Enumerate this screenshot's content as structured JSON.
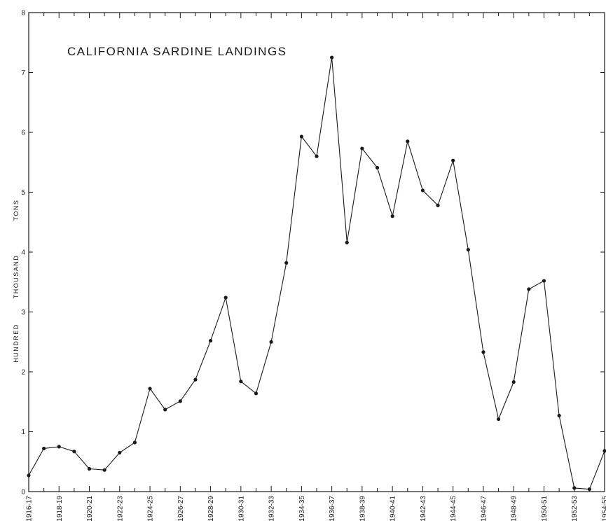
{
  "chart_data": {
    "type": "line",
    "title": "CALIFORNIA SARDINE LANDINGS",
    "ylabel_words": [
      "HUNDRED",
      "THOUSAND",
      "TONS"
    ],
    "ylim": [
      0,
      8
    ],
    "yticks": [
      "0",
      "1",
      "2",
      "3",
      "4",
      "5",
      "6",
      "7",
      "8"
    ],
    "x_tick_labels": [
      "1916-17",
      "1918-19",
      "1920-21",
      "1922-23",
      "1924-25",
      "1926-27",
      "1928-29",
      "1930-31",
      "1932-33",
      "1934-35",
      "1936-37",
      "1938-39",
      "1940-41",
      "1942-43",
      "1944-45",
      "1946-47",
      "1948-49",
      "1950-51",
      "1952-53",
      "1954-55"
    ],
    "series": [
      {
        "x": [
          "1916-17",
          "1917-18",
          "1918-19",
          "1919-20",
          "1920-21",
          "1921-22",
          "1922-23",
          "1923-24",
          "1924-25",
          "1925-26",
          "1926-27",
          "1927-28",
          "1928-29",
          "1929-30",
          "1930-31",
          "1931-32",
          "1932-33",
          "1933-34",
          "1934-35",
          "1935-36",
          "1936-37",
          "1937-38",
          "1938-39",
          "1939-40",
          "1940-41",
          "1941-42",
          "1942-43",
          "1943-44",
          "1944-45",
          "1945-46",
          "1946-47",
          "1947-48",
          "1948-49",
          "1949-50",
          "1950-51",
          "1951-52",
          "1952-53",
          "1953-54",
          "1954-55"
        ],
        "values": [
          0.27,
          0.72,
          0.75,
          0.67,
          0.38,
          0.36,
          0.65,
          0.82,
          1.72,
          1.37,
          1.51,
          1.87,
          2.52,
          3.24,
          1.84,
          1.64,
          2.5,
          3.82,
          5.93,
          5.6,
          7.25,
          4.16,
          5.73,
          5.41,
          4.6,
          5.85,
          5.03,
          4.78,
          5.53,
          4.04,
          2.33,
          1.21,
          1.83,
          3.38,
          3.52,
          1.27,
          0.06,
          0.04,
          0.68
        ]
      }
    ],
    "colors": {
      "line": "#1a1a1a",
      "frame": "#1a1a1a",
      "background": "#ffffff"
    },
    "grid": false
  }
}
